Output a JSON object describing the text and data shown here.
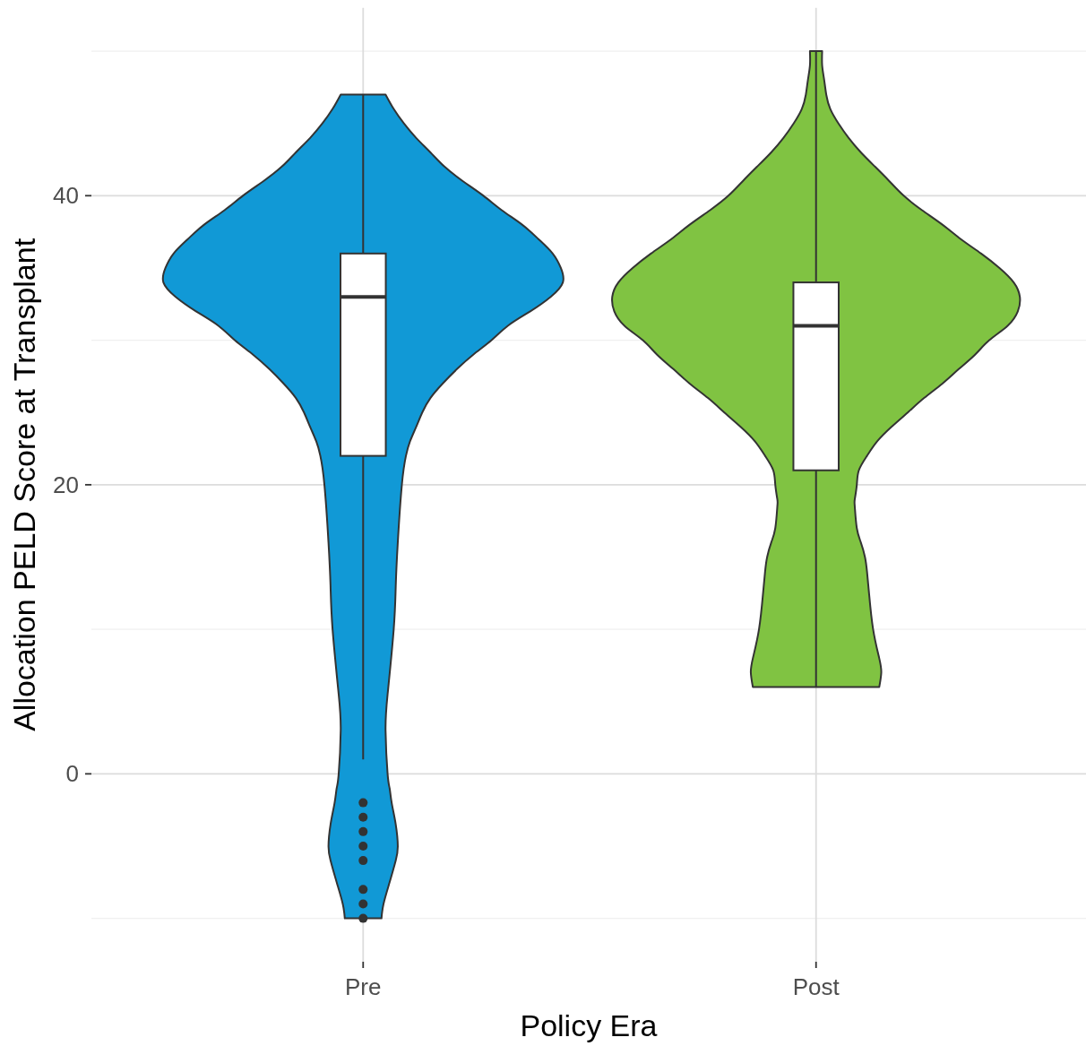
{
  "chart_data": {
    "type": "box",
    "xlabel": "Policy Era",
    "ylabel": "Allocation PELD Score at Transplant",
    "categories": [
      "Pre",
      "Post"
    ],
    "boxes": [
      {
        "low": 1,
        "q1": 22,
        "median": 33,
        "q3": 36,
        "high": 47,
        "outliers": [
          -2,
          -3,
          -4,
          -5,
          -6,
          -8,
          -9,
          -10
        ]
      },
      {
        "low": 6,
        "q1": 21,
        "median": 31,
        "q3": 34,
        "high": 50
      }
    ],
    "ylim": [
      -13,
      53
    ],
    "yticks": [
      {
        "value": -10,
        "label": null
      },
      0,
      {
        "value": 10,
        "label": null
      },
      20,
      {
        "value": 30,
        "label": null
      },
      40,
      {
        "value": 50,
        "label": null
      }
    ],
    "grid": true
  }
}
